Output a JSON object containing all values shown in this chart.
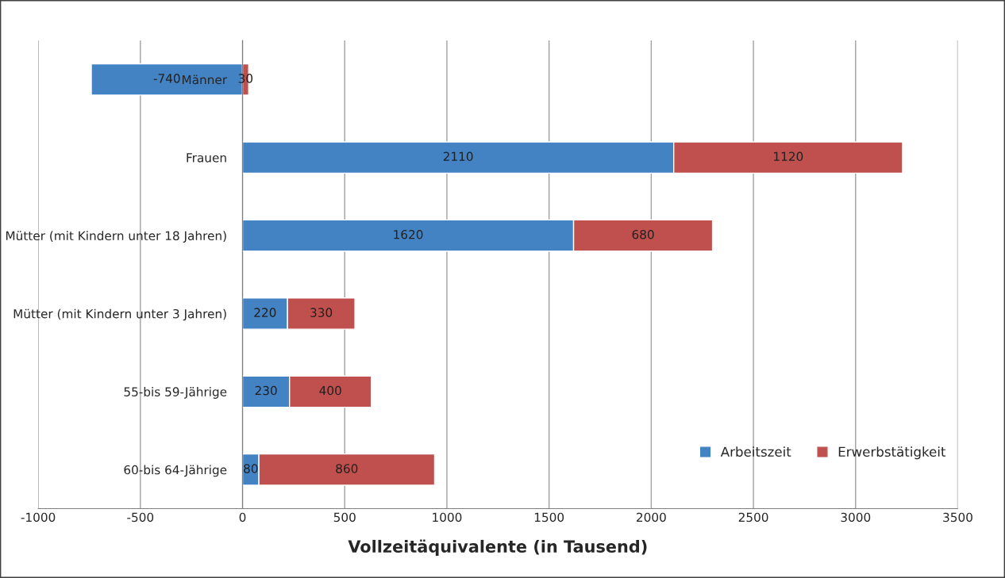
{
  "chart_data": {
    "type": "bar",
    "orientation": "horizontal",
    "stacked": true,
    "categories": [
      "Männer",
      "Frauen",
      "Mütter (mit Kindern unter 18 Jahren)",
      "Mütter (mit Kindern unter 3 Jahren)",
      "55-bis 59-Jährige",
      "60-bis 64-Jährige"
    ],
    "series": [
      {
        "name": "Arbeitszeit",
        "color": "#4383c4",
        "values": [
          -740,
          2110,
          1620,
          220,
          230,
          80
        ]
      },
      {
        "name": "Erwerbstätigkeit",
        "color": "#c0504d",
        "values": [
          30,
          1120,
          680,
          330,
          400,
          860
        ]
      }
    ],
    "xlabel": "Vollzeitäquivalente (in Tausend)",
    "xlim": [
      -1000,
      3500
    ],
    "xticks": [
      -1000,
      -500,
      0,
      500,
      1000,
      1500,
      2000,
      2500,
      3000,
      3500
    ],
    "grid": "x",
    "legend": "bottom right",
    "data_labels": true
  }
}
